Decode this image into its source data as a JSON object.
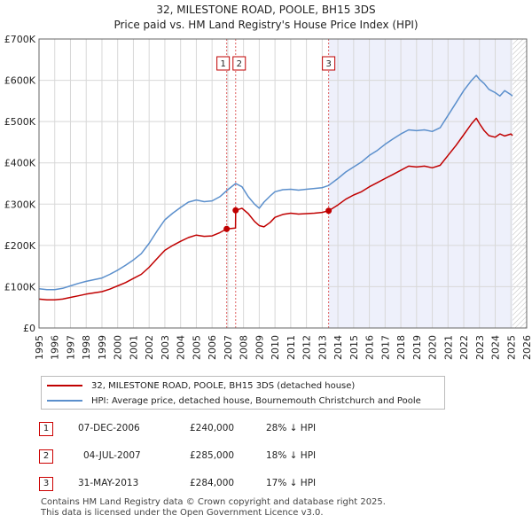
{
  "title": "32, MILESTONE ROAD, POOLE, BH15 3DS",
  "subtitle": "Price paid vs. HM Land Registry's House Price Index (HPI)",
  "colors": {
    "property": "#c00000",
    "hpi": "#5b8fcc",
    "shade": "#eef0fb",
    "grid": "#d8d8d8"
  },
  "legend": {
    "property_label": "32, MILESTONE ROAD, POOLE, BH15 3DS (detached house)",
    "hpi_label": "HPI: Average price, detached house, Bournemouth Christchurch and Poole"
  },
  "sales": [
    {
      "num": "1",
      "date": "07-DEC-2006",
      "price": "£240,000",
      "hpi": "28% ↓ HPI"
    },
    {
      "num": "2",
      "date": "04-JUL-2007",
      "price": "£285,000",
      "hpi": "18% ↓ HPI"
    },
    {
      "num": "3",
      "date": "31-MAY-2013",
      "price": "£284,000",
      "hpi": "17% ↓ HPI"
    }
  ],
  "footer": {
    "line1": "Contains HM Land Registry data © Crown copyright and database right 2025.",
    "line2": "This data is licensed under the Open Government Licence v3.0."
  },
  "chart_data": {
    "type": "line",
    "title": "32, MILESTONE ROAD, POOLE, BH15 3DS",
    "xlim": [
      1995,
      2026
    ],
    "ylim": [
      0,
      700000
    ],
    "y_ticks": [
      0,
      100000,
      200000,
      300000,
      400000,
      500000,
      600000,
      700000
    ],
    "y_tick_labels": [
      "£0",
      "£100K",
      "£200K",
      "£300K",
      "£400K",
      "£500K",
      "£600K",
      "£700K"
    ],
    "x_ticks": [
      1995,
      1996,
      1997,
      1998,
      1999,
      2000,
      2001,
      2002,
      2003,
      2004,
      2005,
      2006,
      2007,
      2008,
      2009,
      2010,
      2011,
      2012,
      2013,
      2014,
      2015,
      2016,
      2017,
      2018,
      2019,
      2020,
      2021,
      2022,
      2023,
      2024,
      2025,
      2026
    ],
    "x_tick_labels": [
      "1995",
      "1996",
      "1997",
      "1998",
      "1999",
      "2000",
      "2001",
      "2002",
      "2003",
      "2004",
      "2005",
      "2006",
      "2007",
      "2008",
      "2009",
      "2010",
      "2011",
      "2012",
      "2013",
      "2014",
      "2015",
      "2016",
      "2017",
      "2018",
      "2019",
      "2020",
      "2021",
      "2022",
      "2023",
      "2024",
      "2025",
      "2026"
    ],
    "shaded_from": 2013.41,
    "hatched_from": 2025.1,
    "sale_markers": [
      {
        "label": "1",
        "x": 2006.93,
        "y": 240000
      },
      {
        "label": "2",
        "x": 2007.5,
        "y": 285000
      },
      {
        "label": "3",
        "x": 2013.41,
        "y": 284000
      }
    ],
    "series": [
      {
        "name": "HPI: Average price, detached house, Bournemouth Christchurch and Poole",
        "color": "#5b8fcc",
        "x": [
          1995,
          1995.5,
          1996,
          1996.5,
          1997,
          1997.5,
          1998,
          1998.5,
          1999,
          1999.5,
          2000,
          2000.5,
          2001,
          2001.5,
          2002,
          2002.5,
          2003,
          2003.5,
          2004,
          2004.5,
          2005,
          2005.5,
          2006,
          2006.5,
          2007,
          2007.5,
          2007.9,
          2008.3,
          2008.7,
          2009,
          2009.3,
          2009.7,
          2010,
          2010.5,
          2011,
          2011.5,
          2012,
          2012.5,
          2013,
          2013.4,
          2014,
          2014.5,
          2015,
          2015.5,
          2016,
          2016.5,
          2017,
          2017.5,
          2018,
          2018.5,
          2019,
          2019.5,
          2020,
          2020.5,
          2021,
          2021.5,
          2022,
          2022.5,
          2022.8,
          2023,
          2023.3,
          2023.6,
          2024,
          2024.3,
          2024.6,
          2025,
          2025.1
        ],
        "y": [
          95000,
          93000,
          93000,
          96000,
          102000,
          108000,
          113000,
          117000,
          121000,
          130000,
          140000,
          152000,
          165000,
          180000,
          205000,
          235000,
          262000,
          278000,
          292000,
          305000,
          310000,
          306000,
          308000,
          318000,
          335000,
          350000,
          342000,
          318000,
          300000,
          290000,
          305000,
          320000,
          330000,
          335000,
          336000,
          334000,
          336000,
          338000,
          340000,
          345000,
          362000,
          378000,
          390000,
          402000,
          418000,
          430000,
          445000,
          458000,
          470000,
          480000,
          478000,
          480000,
          476000,
          485000,
          515000,
          545000,
          575000,
          600000,
          612000,
          602000,
          592000,
          578000,
          570000,
          562000,
          575000,
          565000,
          562000
        ]
      },
      {
        "name": "32, MILESTONE ROAD, POOLE, BH15 3DS (detached house)",
        "color": "#c00000",
        "x": [
          1995,
          1995.5,
          1996,
          1996.5,
          1997,
          1997.5,
          1998,
          1998.5,
          1999,
          1999.5,
          2000,
          2000.5,
          2001,
          2001.5,
          2002,
          2002.5,
          2003,
          2003.5,
          2004,
          2004.5,
          2005,
          2005.5,
          2006,
          2006.5,
          2006.93,
          2006.94,
          2007.49,
          2007.5,
          2007.9,
          2008.3,
          2008.7,
          2009,
          2009.3,
          2009.7,
          2010,
          2010.5,
          2011,
          2011.5,
          2012,
          2012.5,
          2013,
          2013.41,
          2013.42,
          2014,
          2014.5,
          2015,
          2015.5,
          2016,
          2016.5,
          2017,
          2017.5,
          2018,
          2018.5,
          2019,
          2019.5,
          2020,
          2020.5,
          2021,
          2021.5,
          2022,
          2022.5,
          2022.8,
          2023,
          2023.3,
          2023.6,
          2024,
          2024.3,
          2024.6,
          2025,
          2025.1
        ],
        "y": [
          70000,
          68000,
          68000,
          70000,
          74000,
          78000,
          82000,
          85000,
          88000,
          94000,
          102000,
          110000,
          120000,
          130000,
          147000,
          168000,
          188000,
          200000,
          210000,
          219000,
          225000,
          222000,
          223000,
          231000,
          240000,
          240000,
          242000,
          285000,
          290000,
          277000,
          258000,
          248000,
          245000,
          256000,
          268000,
          275000,
          278000,
          276000,
          277000,
          278000,
          280000,
          284000,
          284000,
          298000,
          312000,
          322000,
          330000,
          342000,
          352000,
          362000,
          372000,
          382000,
          392000,
          390000,
          392000,
          388000,
          394000,
          418000,
          442000,
          468000,
          495000,
          508000,
          495000,
          478000,
          466000,
          462000,
          470000,
          465000,
          470000,
          466000
        ]
      }
    ]
  }
}
